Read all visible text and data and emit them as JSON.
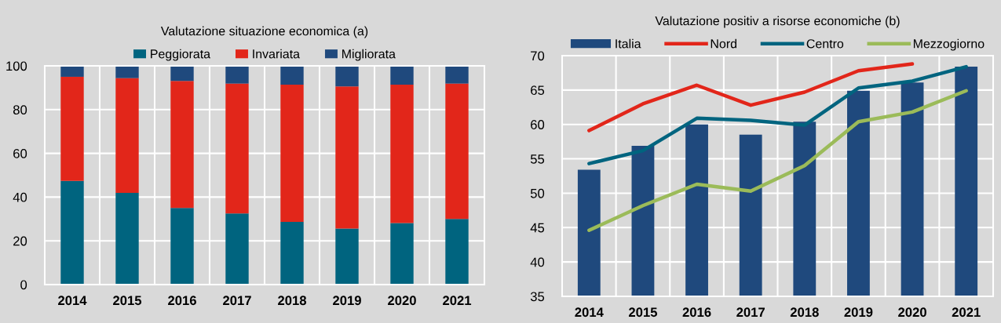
{
  "chart_data": [
    {
      "type": "bar",
      "title": "Valutazione situazione economica (a)",
      "stacked": true,
      "categories": [
        "2014",
        "2015",
        "2016",
        "2017",
        "2018",
        "2019",
        "2020",
        "2021"
      ],
      "series": [
        {
          "name": "Peggiorata",
          "color": "#00647f",
          "values": [
            47.4,
            41.9,
            35.0,
            32.5,
            28.7,
            25.6,
            28.1,
            30.0
          ]
        },
        {
          "name": "Invariata",
          "color": "#e2261a",
          "values": [
            47.6,
            52.5,
            58.1,
            59.4,
            62.7,
            65.0,
            63.3,
            61.9
          ]
        },
        {
          "name": "Migliorata",
          "color": "#1f497d",
          "values": [
            5.0,
            5.6,
            6.9,
            8.1,
            8.6,
            9.4,
            8.6,
            8.1
          ]
        }
      ],
      "ylim": [
        0,
        100
      ],
      "yticks": [
        0,
        20,
        40,
        60,
        80,
        100
      ],
      "grid": true,
      "legend": "top"
    },
    {
      "type": "bar",
      "title": "Valutazione positiv a risorse economiche (b)",
      "categories": [
        "2014",
        "2015",
        "2016",
        "2017",
        "2018",
        "2019",
        "2020",
        "2021"
      ],
      "series": [
        {
          "name": "Italia",
          "color": "#1f497d",
          "type": "bar",
          "values": [
            53.4,
            56.9,
            60.0,
            58.5,
            60.4,
            64.9,
            66.1,
            68.4
          ]
        },
        {
          "name": "Nord",
          "color": "#e2261a",
          "type": "line",
          "values": [
            59.1,
            63.0,
            65.7,
            62.8,
            64.7,
            67.8,
            68.8,
            null
          ]
        },
        {
          "name": "Centro",
          "color": "#00647f",
          "type": "line",
          "values": [
            54.3,
            56.2,
            60.9,
            60.6,
            59.9,
            65.3,
            66.3,
            68.4
          ]
        },
        {
          "name": "Mezzogiorno",
          "color": "#9bbb59",
          "type": "line",
          "values": [
            44.6,
            48.2,
            51.3,
            50.3,
            54.0,
            60.4,
            61.8,
            64.9
          ]
        }
      ],
      "ylim": [
        35,
        70
      ],
      "yticks": [
        35,
        40,
        45,
        50,
        55,
        60,
        65,
        70
      ],
      "grid": true,
      "legend": "top",
      "marker": "none",
      "line_style": "solid"
    }
  ]
}
